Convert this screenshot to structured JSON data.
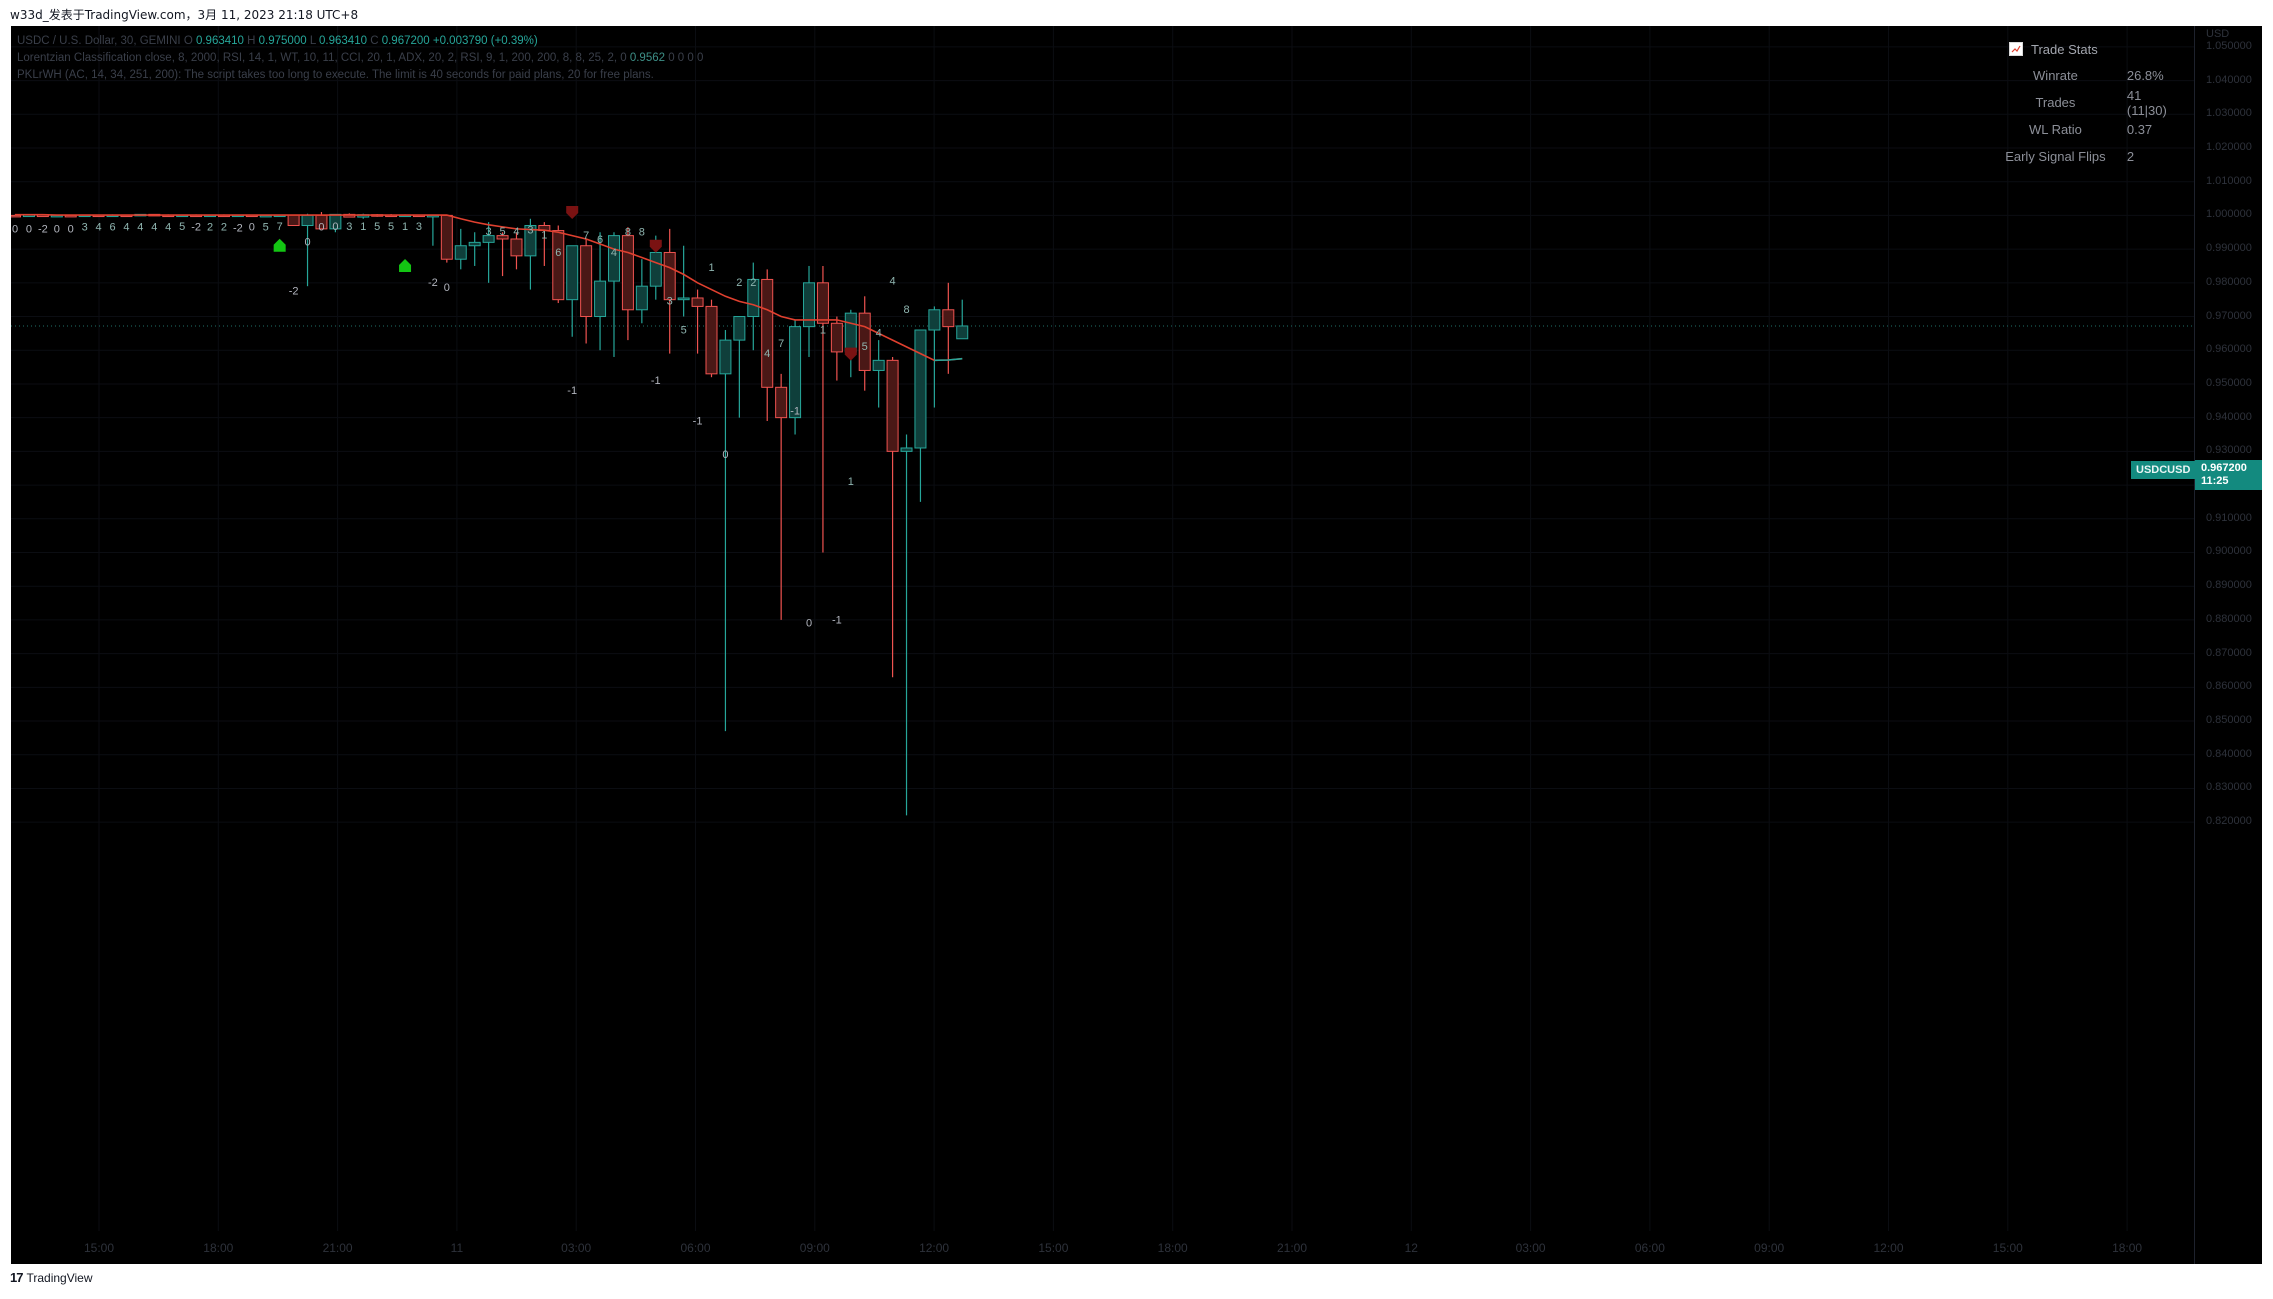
{
  "page_title": "w33d_发表于TradingView.com，3月 11, 2023 21:18 UTC+8",
  "legend": {
    "line1_prefix": "USDC / U.S. Dollar, 30, GEMINI",
    "o_label": "O",
    "o_value": "0.963410",
    "h_label": "H",
    "h_value": "0.975000",
    "l_label": "L",
    "l_value": "0.963410",
    "c_label": "C",
    "c_value": "0.967200",
    "change": "+0.003790 (+0.39%)",
    "line2_text": "Lorentzian Classification close, 8, 2000, RSI, 14, 1, WT, 10, 11, CCI, 20, 1, ADX, 20, 2, RSI, 9, 1, 200, 200, 8, 8, 25, 2, 0",
    "line2_value": "0.9562",
    "line2_tail": "0  0  0  0",
    "line3_text": "PKLrWH (AC, 14, 34, 251, 200): The script takes too long to execute. The limit is 40 seconds for paid plans, 20 for free plans."
  },
  "trade_stats": {
    "title": "Trade Stats",
    "rows": [
      {
        "label": "Winrate",
        "value": "26.8%"
      },
      {
        "label": "Trades",
        "value": "41 (11|30)"
      },
      {
        "label": "WL Ratio",
        "value": "0.37"
      },
      {
        "label": "Early Signal Flips",
        "value": "2"
      }
    ]
  },
  "y_axis": {
    "unit": "USD",
    "ticks": [
      "1.050000",
      "1.040000",
      "1.030000",
      "1.020000",
      "1.010000",
      "1.000000",
      "0.990000",
      "0.980000",
      "0.970000",
      "0.960000",
      "0.950000",
      "0.940000",
      "0.930000",
      "0.920000",
      "0.910000",
      "0.900000",
      "0.890000",
      "0.880000",
      "0.870000",
      "0.860000",
      "0.850000",
      "0.840000",
      "0.830000",
      "0.820000"
    ]
  },
  "x_axis": {
    "ticks": [
      "15:00",
      "18:00",
      "21:00",
      "11",
      "03:00",
      "06:00",
      "09:00",
      "12:00",
      "15:00",
      "18:00",
      "21:00",
      "12",
      "03:00",
      "06:00",
      "09:00",
      "12:00",
      "15:00",
      "18:00"
    ]
  },
  "price_badge": {
    "symbol": "USDCUSD",
    "price": "0.967200",
    "countdown": "11:25"
  },
  "footer": {
    "logo": "17",
    "brand": "TradingView"
  },
  "colors": {
    "up": "#26a69a",
    "down": "#ef5350",
    "ma": "#e0402f",
    "background": "#000000"
  },
  "chart_data": {
    "type": "candlestick",
    "timeframe": "30",
    "symbol": "USDCUSD",
    "ylim": [
      0.815,
      1.055
    ],
    "candles": [
      {
        "o": 1.0,
        "h": 1.0002,
        "l": 0.9998,
        "c": 0.9998
      },
      {
        "o": 0.9998,
        "h": 1.0002,
        "l": 0.9997,
        "c": 1.0001
      },
      {
        "o": 1.0001,
        "h": 1.0003,
        "l": 0.9998,
        "c": 0.9999
      },
      {
        "o": 0.9999,
        "h": 1.0001,
        "l": 0.9997,
        "c": 1.0
      },
      {
        "o": 1.0,
        "h": 1.0002,
        "l": 0.9997,
        "c": 0.9998
      },
      {
        "o": 0.9998,
        "h": 1.0002,
        "l": 0.9997,
        "c": 1.0001
      },
      {
        "o": 1.0001,
        "h": 1.0002,
        "l": 0.9999,
        "c": 1.0
      },
      {
        "o": 1.0,
        "h": 1.0003,
        "l": 0.9998,
        "c": 1.0001
      },
      {
        "o": 1.0001,
        "h": 1.0002,
        "l": 0.9998,
        "c": 0.9999
      },
      {
        "o": 0.9999,
        "h": 1.0004,
        "l": 0.9998,
        "c": 1.0003
      },
      {
        "o": 1.0003,
        "h": 1.0004,
        "l": 0.9999,
        "c": 1.0001
      },
      {
        "o": 1.0001,
        "h": 1.0003,
        "l": 0.9999,
        "c": 1.0
      },
      {
        "o": 1.0,
        "h": 1.0002,
        "l": 0.9998,
        "c": 1.0001
      },
      {
        "o": 1.0001,
        "h": 1.0003,
        "l": 0.9999,
        "c": 1.0
      },
      {
        "o": 1.0,
        "h": 1.0002,
        "l": 0.9997,
        "c": 1.0001
      },
      {
        "o": 1.0001,
        "h": 1.0003,
        "l": 0.9998,
        "c": 0.9999
      },
      {
        "o": 0.9999,
        "h": 1.0002,
        "l": 0.9997,
        "c": 1.0001
      },
      {
        "o": 1.0001,
        "h": 1.0002,
        "l": 0.9997,
        "c": 0.9998
      },
      {
        "o": 0.9998,
        "h": 1.0001,
        "l": 0.9996,
        "c": 1.0
      },
      {
        "o": 1.0,
        "h": 1.0002,
        "l": 0.9998,
        "c": 1.0001
      },
      {
        "o": 1.0001,
        "h": 1.0002,
        "l": 0.997,
        "c": 0.997
      },
      {
        "o": 0.997,
        "h": 1.0005,
        "l": 0.979,
        "c": 1.0
      },
      {
        "o": 1.0,
        "h": 1.001,
        "l": 0.996,
        "c": 0.996
      },
      {
        "o": 0.996,
        "h": 1.0004,
        "l": 0.995,
        "c": 1.0003
      },
      {
        "o": 1.0003,
        "h": 1.0006,
        "l": 0.9995,
        "c": 0.9995
      },
      {
        "o": 0.9995,
        "h": 1.0005,
        "l": 0.999,
        "c": 1.0002
      },
      {
        "o": 1.0002,
        "h": 1.0004,
        "l": 0.9996,
        "c": 1.0001
      },
      {
        "o": 1.0001,
        "h": 1.0004,
        "l": 0.9998,
        "c": 1.0
      },
      {
        "o": 1.0,
        "h": 1.0003,
        "l": 0.9998,
        "c": 1.0001
      },
      {
        "o": 1.0001,
        "h": 1.0002,
        "l": 0.9997,
        "c": 0.9999
      },
      {
        "o": 0.9999,
        "h": 1.0001,
        "l": 0.991,
        "c": 1.0
      },
      {
        "o": 1.0,
        "h": 1.0002,
        "l": 0.986,
        "c": 0.987
      },
      {
        "o": 0.987,
        "h": 0.996,
        "l": 0.984,
        "c": 0.991
      },
      {
        "o": 0.991,
        "h": 0.995,
        "l": 0.985,
        "c": 0.992
      },
      {
        "o": 0.992,
        "h": 0.998,
        "l": 0.98,
        "c": 0.994
      },
      {
        "o": 0.994,
        "h": 0.995,
        "l": 0.982,
        "c": 0.993
      },
      {
        "o": 0.993,
        "h": 0.995,
        "l": 0.984,
        "c": 0.988
      },
      {
        "o": 0.988,
        "h": 0.999,
        "l": 0.978,
        "c": 0.997
      },
      {
        "o": 0.997,
        "h": 0.998,
        "l": 0.985,
        "c": 0.9955
      },
      {
        "o": 0.9955,
        "h": 0.997,
        "l": 0.974,
        "c": 0.975
      },
      {
        "o": 0.975,
        "h": 0.991,
        "l": 0.964,
        "c": 0.991
      },
      {
        "o": 0.991,
        "h": 0.993,
        "l": 0.962,
        "c": 0.97
      },
      {
        "o": 0.97,
        "h": 0.995,
        "l": 0.96,
        "c": 0.9805
      },
      {
        "o": 0.9805,
        "h": 0.995,
        "l": 0.958,
        "c": 0.994
      },
      {
        "o": 0.994,
        "h": 0.9965,
        "l": 0.963,
        "c": 0.972
      },
      {
        "o": 0.972,
        "h": 0.987,
        "l": 0.968,
        "c": 0.979
      },
      {
        "o": 0.979,
        "h": 0.994,
        "l": 0.975,
        "c": 0.989
      },
      {
        "o": 0.989,
        "h": 0.996,
        "l": 0.959,
        "c": 0.975
      },
      {
        "o": 0.975,
        "h": 0.991,
        "l": 0.97,
        "c": 0.9755
      },
      {
        "o": 0.9755,
        "h": 0.978,
        "l": 0.959,
        "c": 0.973
      },
      {
        "o": 0.973,
        "h": 0.975,
        "l": 0.952,
        "c": 0.953
      },
      {
        "o": 0.953,
        "h": 0.966,
        "l": 0.847,
        "c": 0.963
      },
      {
        "o": 0.963,
        "h": 0.97,
        "l": 0.94,
        "c": 0.97
      },
      {
        "o": 0.97,
        "h": 0.986,
        "l": 0.96,
        "c": 0.981
      },
      {
        "o": 0.981,
        "h": 0.984,
        "l": 0.939,
        "c": 0.949
      },
      {
        "o": 0.949,
        "h": 0.953,
        "l": 0.88,
        "c": 0.94
      },
      {
        "o": 0.94,
        "h": 0.969,
        "l": 0.935,
        "c": 0.967
      },
      {
        "o": 0.967,
        "h": 0.985,
        "l": 0.958,
        "c": 0.98
      },
      {
        "o": 0.98,
        "h": 0.985,
        "l": 0.9,
        "c": 0.968
      },
      {
        "o": 0.968,
        "h": 0.97,
        "l": 0.951,
        "c": 0.9595
      },
      {
        "o": 0.9595,
        "h": 0.972,
        "l": 0.952,
        "c": 0.971
      },
      {
        "o": 0.971,
        "h": 0.976,
        "l": 0.948,
        "c": 0.954
      },
      {
        "o": 0.954,
        "h": 0.963,
        "l": 0.943,
        "c": 0.957
      },
      {
        "o": 0.957,
        "h": 0.958,
        "l": 0.863,
        "c": 0.93
      },
      {
        "o": 0.93,
        "h": 0.935,
        "l": 0.822,
        "c": 0.931
      },
      {
        "o": 0.931,
        "h": 0.966,
        "l": 0.915,
        "c": 0.966
      },
      {
        "o": 0.966,
        "h": 0.973,
        "l": 0.943,
        "c": 0.972
      },
      {
        "o": 0.972,
        "h": 0.98,
        "l": 0.953,
        "c": 0.967
      },
      {
        "o": 0.9634,
        "h": 0.975,
        "l": 0.9634,
        "c": 0.9672
      }
    ],
    "ma_line": [
      1.0002,
      1.0002,
      1.0002,
      1.0001,
      1.0001,
      1.0001,
      1.0001,
      1.0001,
      1.0001,
      1.0001,
      1.0001,
      1.0001,
      1.0001,
      1.0001,
      1.0001,
      1.0001,
      1.0001,
      1.0001,
      1.0001,
      1.0001,
      1.0001,
      1.0001,
      1.0001,
      1.0001,
      1.0001,
      1.0001,
      1.0001,
      1.0001,
      1.0001,
      1.0001,
      1.0001,
      1.0001,
      0.999,
      0.998,
      0.9972,
      0.9966,
      0.996,
      0.9958,
      0.9956,
      0.995,
      0.994,
      0.993,
      0.9915,
      0.99,
      0.989,
      0.9875,
      0.986,
      0.9845,
      0.9825,
      0.98,
      0.978,
      0.976,
      0.9745,
      0.9735,
      0.972,
      0.97,
      0.969,
      0.969,
      0.969,
      0.969,
      0.968,
      0.967,
      0.965,
      0.963,
      0.961,
      0.959,
      0.957,
      0.9571,
      0.9575
    ],
    "bar_labels": [
      {
        "i": 0,
        "y": 0.995,
        "t": "0"
      },
      {
        "i": 1,
        "y": 0.995,
        "t": "0"
      },
      {
        "i": 2,
        "y": 0.995,
        "t": "-2"
      },
      {
        "i": 3,
        "y": 0.995,
        "t": "0"
      },
      {
        "i": 4,
        "y": 0.995,
        "t": "0"
      },
      {
        "i": 5,
        "y": 0.9955,
        "t": "3"
      },
      {
        "i": 6,
        "y": 0.9955,
        "t": "4"
      },
      {
        "i": 7,
        "y": 0.9955,
        "t": "6"
      },
      {
        "i": 8,
        "y": 0.9955,
        "t": "4"
      },
      {
        "i": 9,
        "y": 0.9955,
        "t": "4"
      },
      {
        "i": 10,
        "y": 0.9955,
        "t": "4"
      },
      {
        "i": 11,
        "y": 0.9955,
        "t": "4"
      },
      {
        "i": 12,
        "y": 0.9957,
        "t": "5"
      },
      {
        "i": 13,
        "y": 0.9955,
        "t": "-2"
      },
      {
        "i": 14,
        "y": 0.9955,
        "t": "2"
      },
      {
        "i": 15,
        "y": 0.9955,
        "t": "2"
      },
      {
        "i": 16,
        "y": 0.9952,
        "t": "-2"
      },
      {
        "i": 17,
        "y": 0.9955,
        "t": "0"
      },
      {
        "i": 18,
        "y": 0.9955,
        "t": "5"
      },
      {
        "i": 19,
        "y": 0.9956,
        "t": "7"
      },
      {
        "i": 20,
        "y": 0.9765,
        "t": "-2"
      },
      {
        "i": 21,
        "y": 0.991,
        "t": "0"
      },
      {
        "i": 22,
        "y": 0.9955,
        "t": "0"
      },
      {
        "i": 23,
        "y": 0.9957,
        "t": "0"
      },
      {
        "i": 24,
        "y": 0.9957,
        "t": "3"
      },
      {
        "i": 25,
        "y": 0.9957,
        "t": "1"
      },
      {
        "i": 26,
        "y": 0.9957,
        "t": "5"
      },
      {
        "i": 27,
        "y": 0.9957,
        "t": "5"
      },
      {
        "i": 28,
        "y": 0.9957,
        "t": "1"
      },
      {
        "i": 29,
        "y": 0.9957,
        "t": "3"
      },
      {
        "i": 30,
        "y": 0.979,
        "t": "-2"
      },
      {
        "i": 31,
        "y": 0.9775,
        "t": "0"
      },
      {
        "i": 34,
        "y": 0.9942,
        "t": "3"
      },
      {
        "i": 35,
        "y": 0.9942,
        "t": "5"
      },
      {
        "i": 36,
        "y": 0.9942,
        "t": "4"
      },
      {
        "i": 37,
        "y": 0.9947,
        "t": "3"
      },
      {
        "i": 38,
        "y": 0.9932,
        "t": "1"
      },
      {
        "i": 39,
        "y": 0.988,
        "t": "6"
      },
      {
        "i": 40,
        "y": 0.947,
        "t": "-1"
      },
      {
        "i": 41,
        "y": 0.993,
        "t": "7"
      },
      {
        "i": 42,
        "y": 0.9918,
        "t": "6"
      },
      {
        "i": 43,
        "y": 0.988,
        "t": "4"
      },
      {
        "i": 44,
        "y": 0.994,
        "t": "8"
      },
      {
        "i": 45,
        "y": 0.994,
        "t": "8"
      },
      {
        "i": 46,
        "y": 0.95,
        "t": "-1"
      },
      {
        "i": 47,
        "y": 0.9735,
        "t": "3"
      },
      {
        "i": 48,
        "y": 0.965,
        "t": "5"
      },
      {
        "i": 49,
        "y": 0.938,
        "t": "-1"
      },
      {
        "i": 50,
        "y": 0.9835,
        "t": "1"
      },
      {
        "i": 51,
        "y": 0.928,
        "t": "0"
      },
      {
        "i": 52,
        "y": 0.979,
        "t": "2"
      },
      {
        "i": 53,
        "y": 0.979,
        "t": "2"
      },
      {
        "i": 54,
        "y": 0.958,
        "t": "4"
      },
      {
        "i": 55,
        "y": 0.961,
        "t": "7"
      },
      {
        "i": 56,
        "y": 0.941,
        "t": "-1"
      },
      {
        "i": 57,
        "y": 0.878,
        "t": "0"
      },
      {
        "i": 58,
        "y": 0.965,
        "t": "1"
      },
      {
        "i": 59,
        "y": 0.879,
        "t": "-1"
      },
      {
        "i": 60,
        "y": 0.92,
        "t": "1"
      },
      {
        "i": 61,
        "y": 0.96,
        "t": "5"
      },
      {
        "i": 62,
        "y": 0.964,
        "t": "4"
      },
      {
        "i": 63,
        "y": 0.9795,
        "t": "4"
      },
      {
        "i": 64,
        "y": 0.971,
        "t": "8"
      }
    ],
    "signals": [
      {
        "i": 19,
        "y": 0.991,
        "type": "buy"
      },
      {
        "i": 28,
        "y": 0.985,
        "type": "buy"
      },
      {
        "i": 40,
        "y": 1.001,
        "type": "sell"
      },
      {
        "i": 46,
        "y": 0.991,
        "type": "sell"
      },
      {
        "i": 60,
        "y": 0.959,
        "type": "sell"
      }
    ],
    "last_price": 0.9672
  }
}
